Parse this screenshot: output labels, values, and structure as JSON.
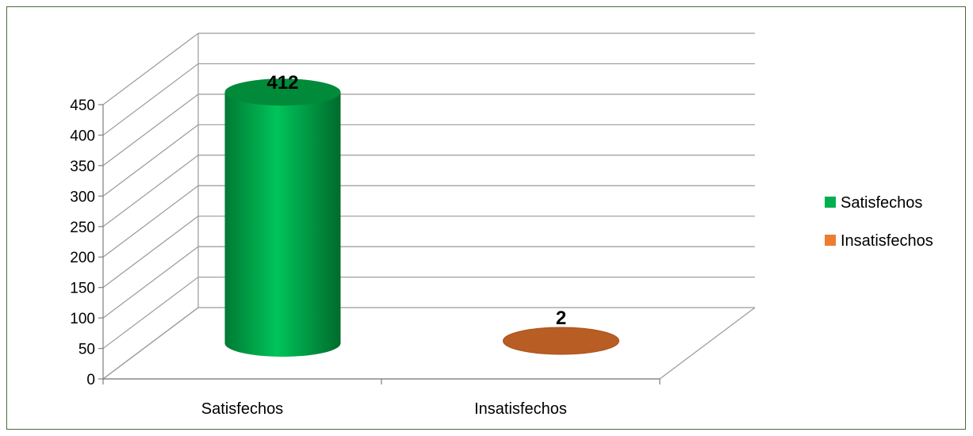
{
  "chart_data": {
    "type": "bar",
    "style": "3d-cylinder",
    "categories": [
      "Satisfechos",
      "Insatisfechos"
    ],
    "values": [
      412,
      2
    ],
    "colors": [
      "#00b050",
      "#c0622a"
    ],
    "top_colors": [
      "#008a3a",
      "#b85e24"
    ],
    "data_labels": [
      "412",
      "2"
    ],
    "ylim": [
      0,
      450
    ],
    "ticks": [
      "0",
      "50",
      "100",
      "150",
      "200",
      "250",
      "300",
      "350",
      "400",
      "450"
    ],
    "tick_values": [
      0,
      50,
      100,
      150,
      200,
      250,
      300,
      350,
      400,
      450
    ],
    "grid": true,
    "legend": {
      "position": "right",
      "entries": [
        {
          "label": "Satisfechos",
          "color": "#00b050"
        },
        {
          "label": "Insatisfechos",
          "color": "#ed7d31"
        }
      ]
    }
  }
}
